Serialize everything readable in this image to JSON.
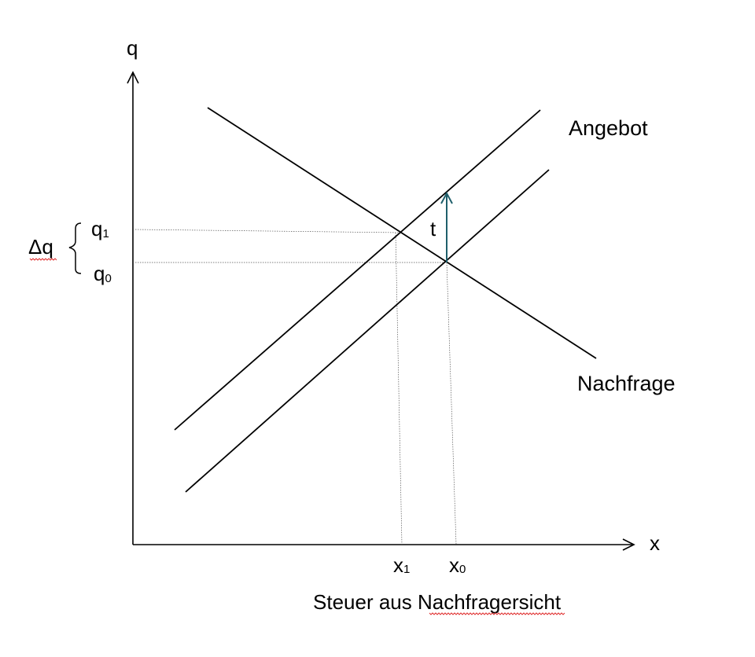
{
  "axes": {
    "y_label": "q",
    "x_label": "x"
  },
  "curves": {
    "supply_label": "Angebot",
    "demand_label": "Nachfrage"
  },
  "tax": {
    "label": "t",
    "arrow_color": "#1f5f6b"
  },
  "price_marks": {
    "delta_label": "Δq",
    "q1": {
      "base": "q",
      "sub": "1"
    },
    "q0": {
      "base": "q",
      "sub": "0"
    }
  },
  "quantity_marks": {
    "x1": {
      "base": "x",
      "sub": "1"
    },
    "x0": {
      "base": "x",
      "sub": "0"
    }
  },
  "caption": {
    "prefix": "Steuer aus ",
    "underlined": "Nachfragersicht"
  },
  "colors": {
    "lines": "#000000",
    "helper_lines": "#555555",
    "spell_underline": "#e03030"
  }
}
